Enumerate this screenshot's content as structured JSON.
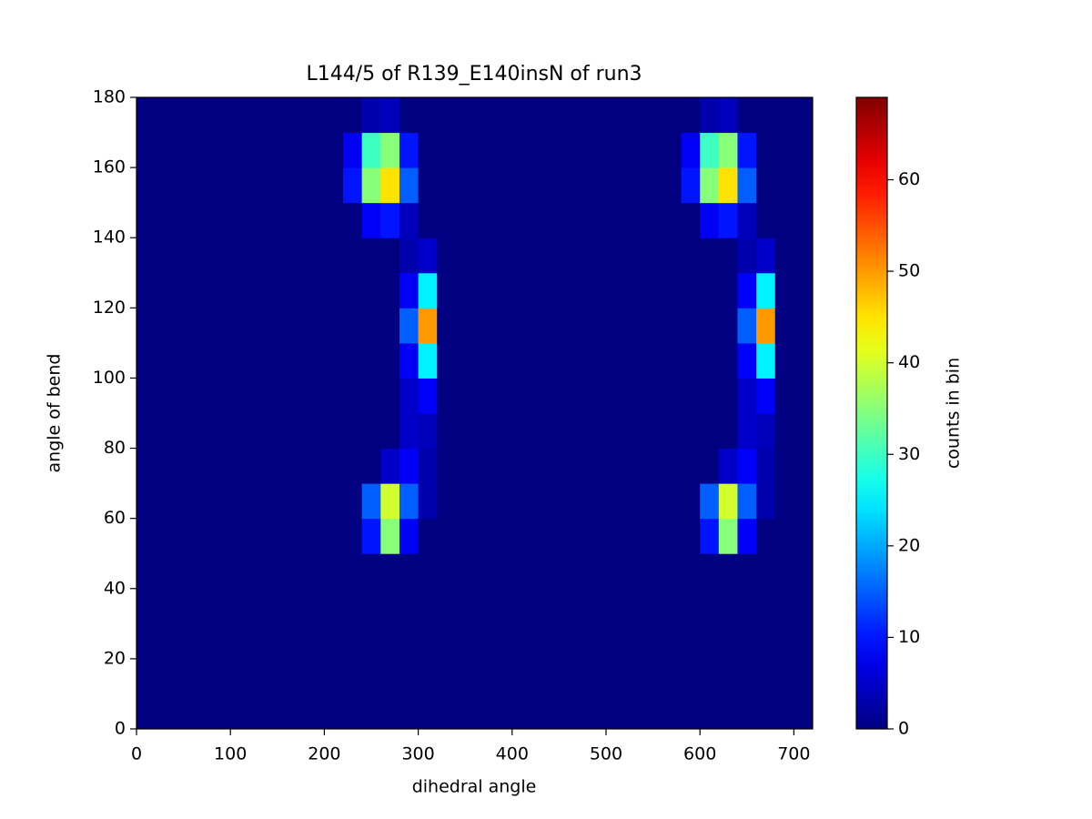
{
  "chart_data": {
    "type": "heatmap",
    "title": "L144/5 of R139_E140insN of run3",
    "xlabel": "dihedral angle",
    "ylabel": "angle of bend",
    "xlim": [
      0,
      720
    ],
    "ylim": [
      0,
      180
    ],
    "xticks": [
      0,
      100,
      200,
      300,
      400,
      500,
      600,
      700
    ],
    "yticks": [
      0,
      20,
      40,
      60,
      80,
      100,
      120,
      140,
      160,
      180
    ],
    "colormap": "jet",
    "colorbar": {
      "label": "counts in bin",
      "lim": [
        0,
        69
      ],
      "ticks": [
        0,
        10,
        20,
        30,
        40,
        50,
        60
      ]
    },
    "z": [
      [
        0,
        0,
        0,
        0,
        0,
        0,
        0,
        0,
        0,
        0,
        0,
        0,
        0,
        0,
        0,
        0,
        0,
        0,
        0,
        0,
        0,
        0,
        0,
        0,
        0,
        0,
        0,
        0,
        0,
        0,
        0,
        0,
        0,
        0,
        0,
        0
      ],
      [
        0,
        0,
        0,
        0,
        0,
        0,
        0,
        0,
        0,
        0,
        0,
        0,
        0,
        0,
        0,
        0,
        0,
        0,
        0,
        0,
        0,
        0,
        0,
        0,
        0,
        0,
        0,
        0,
        0,
        0,
        0,
        0,
        0,
        0,
        0,
        0
      ],
      [
        0,
        0,
        0,
        0,
        0,
        0,
        0,
        0,
        0,
        0,
        0,
        0,
        0,
        0,
        0,
        0,
        0,
        0,
        0,
        0,
        0,
        0,
        0,
        0,
        0,
        0,
        0,
        0,
        0,
        0,
        0,
        0,
        0,
        0,
        0,
        0
      ],
      [
        0,
        0,
        0,
        0,
        0,
        0,
        0,
        0,
        0,
        0,
        0,
        0,
        0,
        0,
        0,
        0,
        0,
        0,
        0,
        0,
        0,
        0,
        0,
        0,
        0,
        0,
        0,
        0,
        0,
        0,
        0,
        0,
        0,
        0,
        0,
        0
      ],
      [
        0,
        0,
        0,
        0,
        0,
        0,
        0,
        0,
        0,
        0,
        0,
        0,
        0,
        0,
        0,
        0,
        0,
        0,
        0,
        0,
        0,
        0,
        0,
        0,
        0,
        0,
        0,
        0,
        0,
        0,
        0,
        0,
        0,
        0,
        0,
        0
      ],
      [
        0,
        0,
        0,
        0,
        0,
        0,
        0,
        0,
        0,
        0,
        0,
        0,
        10,
        35,
        8,
        0,
        0,
        0,
        0,
        0,
        0,
        0,
        0,
        0,
        0,
        0,
        0,
        0,
        0,
        0,
        10,
        35,
        8,
        0,
        0,
        0
      ],
      [
        0,
        0,
        0,
        0,
        0,
        0,
        0,
        0,
        0,
        0,
        0,
        0,
        15,
        40,
        15,
        3,
        0,
        0,
        0,
        0,
        0,
        0,
        0,
        0,
        0,
        0,
        0,
        0,
        0,
        0,
        15,
        40,
        15,
        3,
        0,
        0
      ],
      [
        0,
        0,
        0,
        0,
        0,
        0,
        0,
        0,
        0,
        0,
        0,
        0,
        0,
        5,
        8,
        3,
        0,
        0,
        0,
        0,
        0,
        0,
        0,
        0,
        0,
        0,
        0,
        0,
        0,
        0,
        0,
        5,
        8,
        3,
        0,
        0
      ],
      [
        0,
        0,
        0,
        0,
        0,
        0,
        0,
        0,
        0,
        0,
        0,
        0,
        0,
        0,
        5,
        4,
        0,
        0,
        0,
        0,
        0,
        0,
        0,
        0,
        0,
        0,
        0,
        0,
        0,
        0,
        0,
        0,
        5,
        4,
        0,
        0
      ],
      [
        0,
        0,
        0,
        0,
        0,
        0,
        0,
        0,
        0,
        0,
        0,
        0,
        0,
        0,
        5,
        8,
        0,
        0,
        0,
        0,
        0,
        0,
        0,
        0,
        0,
        0,
        0,
        0,
        0,
        0,
        0,
        0,
        5,
        8,
        0,
        0
      ],
      [
        0,
        0,
        0,
        0,
        0,
        0,
        0,
        0,
        0,
        0,
        0,
        0,
        0,
        0,
        8,
        25,
        0,
        0,
        0,
        0,
        0,
        0,
        0,
        0,
        0,
        0,
        0,
        0,
        0,
        0,
        0,
        0,
        8,
        25,
        0,
        0
      ],
      [
        0,
        0,
        0,
        0,
        0,
        0,
        0,
        0,
        0,
        0,
        0,
        0,
        0,
        0,
        15,
        50,
        0,
        0,
        0,
        0,
        0,
        0,
        0,
        0,
        0,
        0,
        0,
        0,
        0,
        0,
        0,
        0,
        15,
        50,
        0,
        0
      ],
      [
        0,
        0,
        0,
        0,
        0,
        0,
        0,
        0,
        0,
        0,
        0,
        0,
        0,
        0,
        8,
        25,
        0,
        0,
        0,
        0,
        0,
        0,
        0,
        0,
        0,
        0,
        0,
        0,
        0,
        0,
        0,
        0,
        8,
        25,
        0,
        0
      ],
      [
        0,
        0,
        0,
        0,
        0,
        0,
        0,
        0,
        0,
        0,
        0,
        0,
        0,
        0,
        3,
        5,
        0,
        0,
        0,
        0,
        0,
        0,
        0,
        0,
        0,
        0,
        0,
        0,
        0,
        0,
        0,
        0,
        3,
        5,
        0,
        0
      ],
      [
        0,
        0,
        0,
        0,
        0,
        0,
        0,
        0,
        0,
        0,
        0,
        0,
        8,
        10,
        4,
        0,
        0,
        0,
        0,
        0,
        0,
        0,
        0,
        0,
        0,
        0,
        0,
        0,
        0,
        0,
        8,
        10,
        4,
        0,
        0,
        0
      ],
      [
        0,
        0,
        0,
        0,
        0,
        0,
        0,
        0,
        0,
        0,
        0,
        10,
        35,
        45,
        15,
        0,
        0,
        0,
        0,
        0,
        0,
        0,
        0,
        0,
        0,
        0,
        0,
        0,
        0,
        10,
        35,
        45,
        15,
        0,
        0,
        0
      ],
      [
        0,
        0,
        0,
        0,
        0,
        0,
        0,
        0,
        0,
        0,
        0,
        8,
        30,
        35,
        10,
        0,
        0,
        0,
        0,
        0,
        0,
        0,
        0,
        0,
        0,
        0,
        0,
        0,
        0,
        8,
        30,
        35,
        10,
        0,
        0,
        0
      ],
      [
        0,
        0,
        0,
        0,
        0,
        0,
        0,
        0,
        0,
        0,
        0,
        0,
        3,
        4,
        0,
        0,
        0,
        0,
        0,
        0,
        0,
        0,
        0,
        0,
        0,
        0,
        0,
        0,
        0,
        0,
        3,
        4,
        0,
        0,
        0,
        0
      ]
    ]
  }
}
